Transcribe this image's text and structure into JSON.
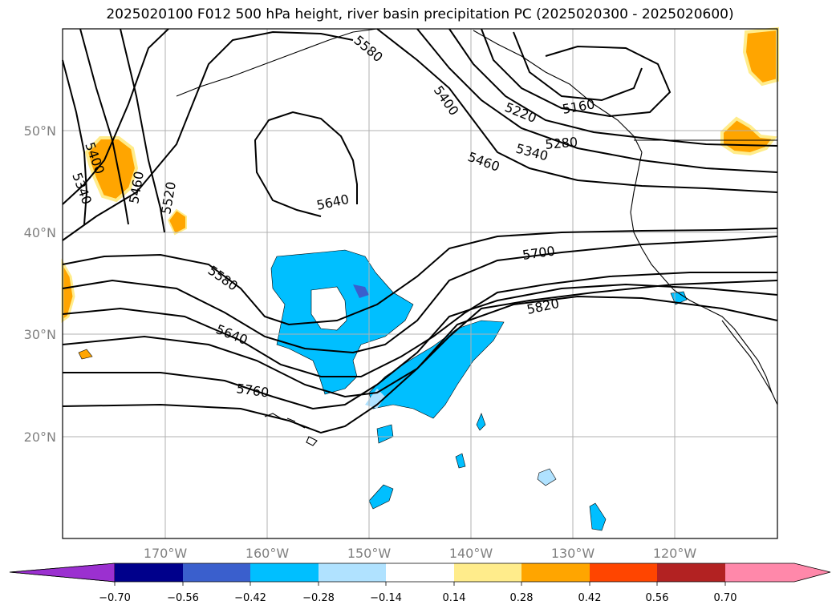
{
  "title": "2025020100 F012 500 hPa height, river basin precipitation PC (2025020300 - 2025020600)",
  "map": {
    "lat_ticks": [
      "50°N",
      "40°N",
      "30°N",
      "20°N"
    ],
    "lon_ticks": [
      "170°W",
      "160°W",
      "150°W",
      "140°W",
      "130°W",
      "120°W"
    ],
    "contour_labels": [
      "5400",
      "5340",
      "5460",
      "5520",
      "5580",
      "5640",
      "5760",
      "5640",
      "5700",
      "5820",
      "5400",
      "5460",
      "5340",
      "5280",
      "5220",
      "5160",
      "5580"
    ],
    "contour_color": "#000000",
    "grid_color": "#b0b0b0"
  },
  "colorbar": {
    "tick_labels": [
      "−0.70",
      "−0.56",
      "−0.42",
      "−0.28",
      "−0.14",
      "0.14",
      "0.28",
      "0.42",
      "0.56",
      "0.70"
    ],
    "colors": [
      "#9b30d0",
      "#00008b",
      "#3a5fcd",
      "#00bfff",
      "#b0e2ff",
      "#ffffff",
      "#ffec8b",
      "#ffa500",
      "#ff4500",
      "#b22222",
      "#ff88aa",
      "#ff88aa"
    ]
  }
}
